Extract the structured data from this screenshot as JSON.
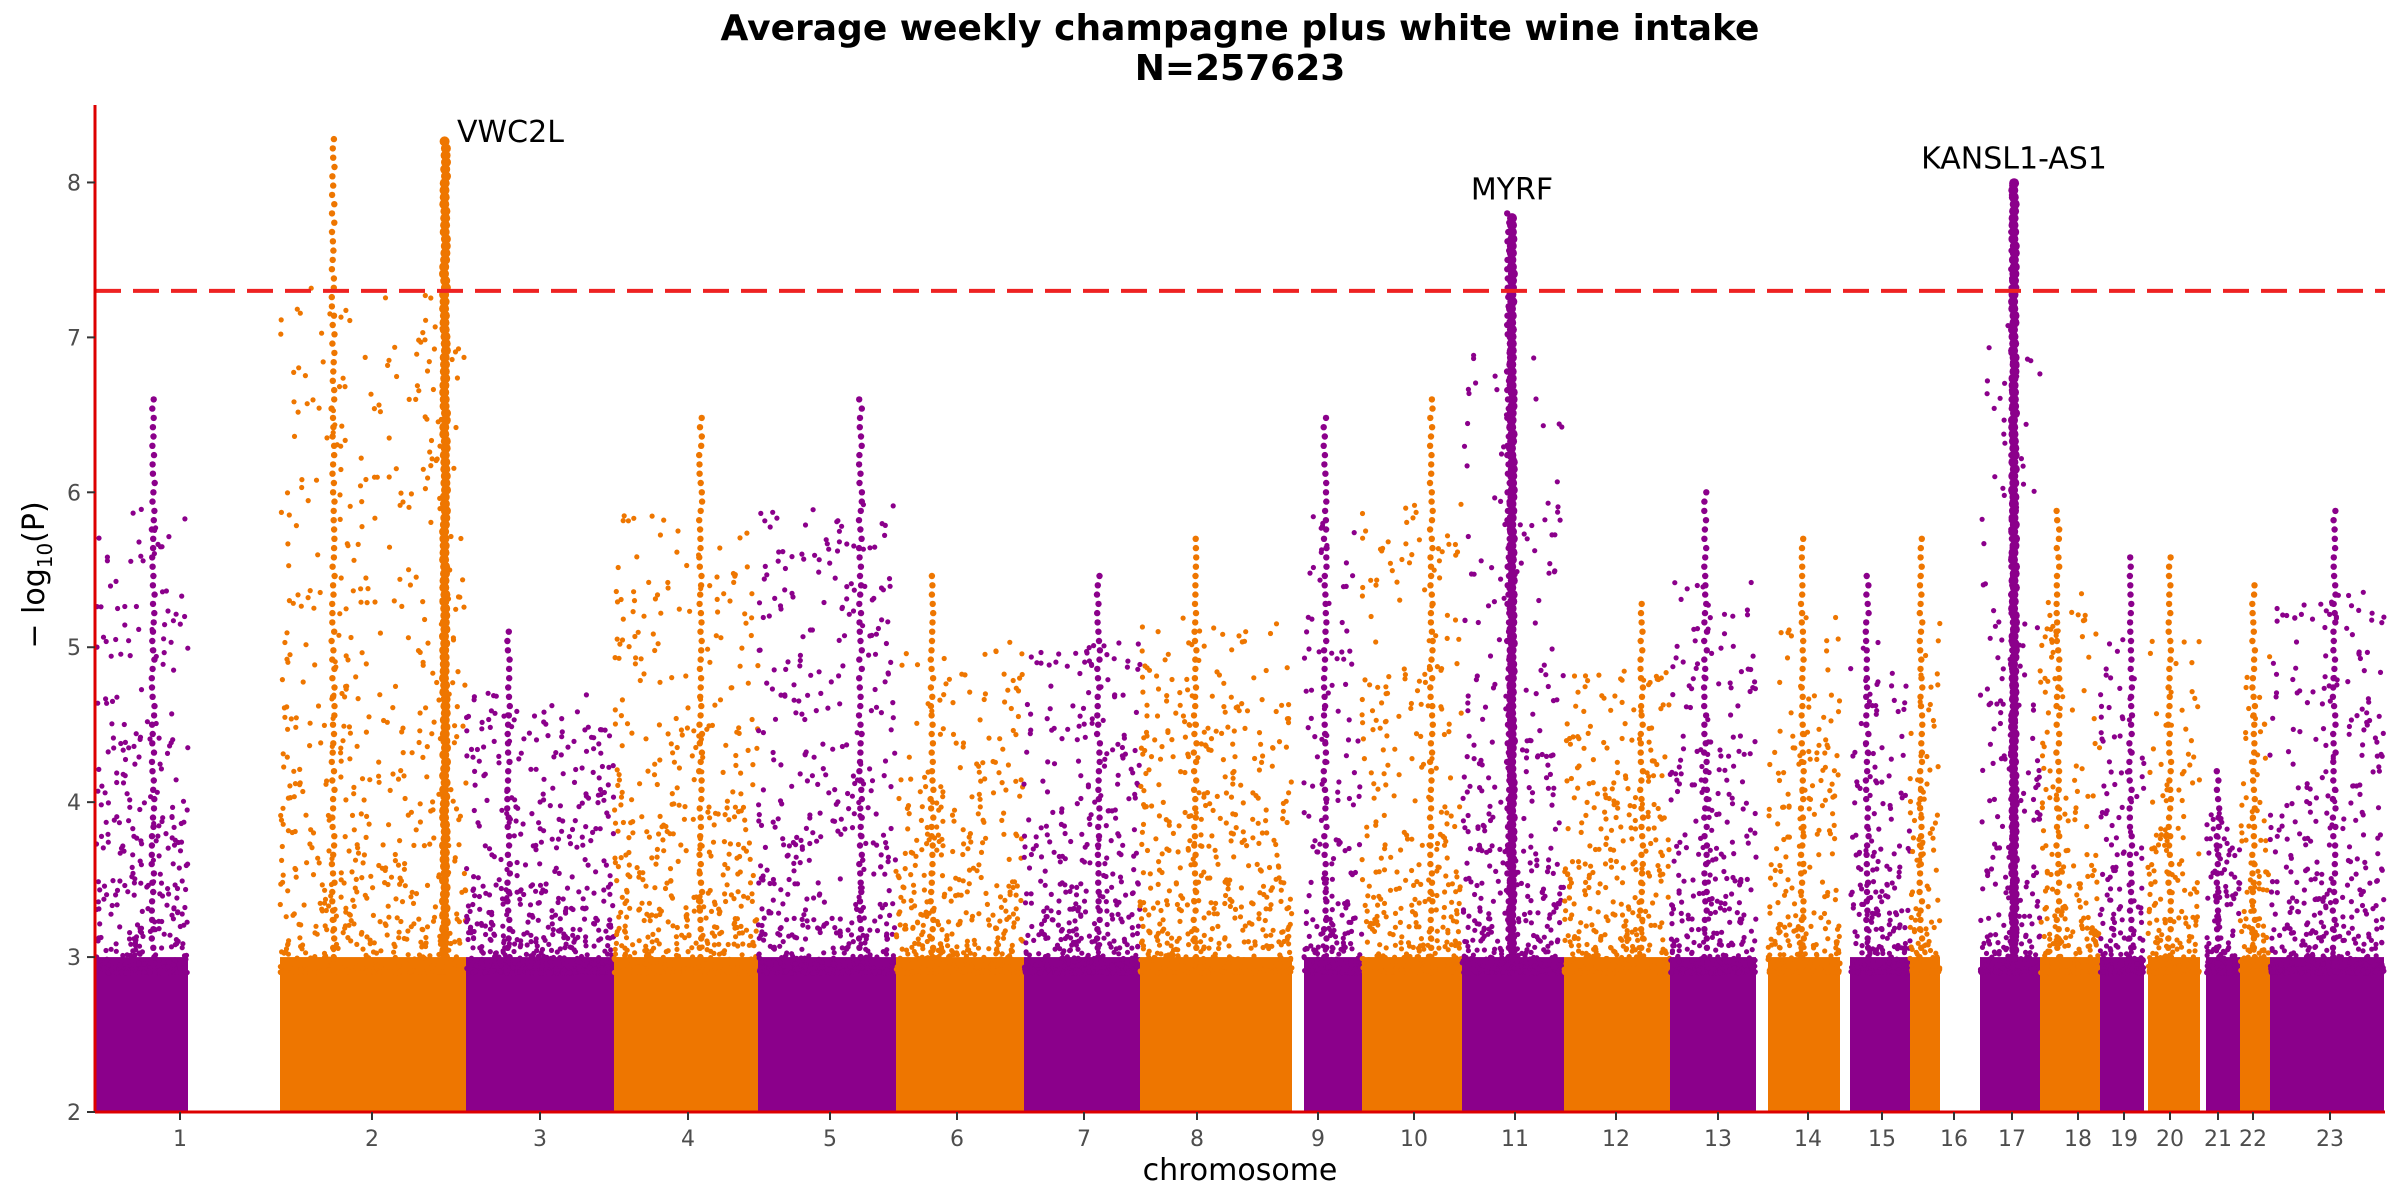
{
  "chart_data": {
    "type": "scatter",
    "subtype": "manhattan",
    "title": "Average weekly champagne plus white wine intake",
    "subtitle": "N=257623",
    "xlabel": "chromosome",
    "ylabel_prefix": "− log",
    "ylabel_sub": "10",
    "ylabel_suffix": "(P)",
    "ylim": [
      2,
      8.5
    ],
    "y_ticks": [
      "2",
      "3",
      "4",
      "5",
      "6",
      "7",
      "8"
    ],
    "significance_threshold": 7.3,
    "threshold_color": "#ee2222",
    "axis_color": "#dd0000",
    "colors": {
      "odd": "#8b008b",
      "even": "#ee7600"
    },
    "chromosomes": [
      {
        "label": "1",
        "color": "odd",
        "max": 6.6
      },
      {
        "label": "2",
        "color": "even",
        "max": 8.3
      },
      {
        "label": "3",
        "color": "odd",
        "max": 5.1
      },
      {
        "label": "4",
        "color": "even",
        "max": 6.5
      },
      {
        "label": "5",
        "color": "odd",
        "max": 6.6
      },
      {
        "label": "6",
        "color": "even",
        "max": 5.5
      },
      {
        "label": "7",
        "color": "odd",
        "max": 5.5
      },
      {
        "label": "8",
        "color": "even",
        "max": 5.7
      },
      {
        "label": "9",
        "color": "odd",
        "max": 6.5
      },
      {
        "label": "10",
        "color": "even",
        "max": 6.6
      },
      {
        "label": "11",
        "color": "odd",
        "max": 7.8
      },
      {
        "label": "12",
        "color": "even",
        "max": 5.3
      },
      {
        "label": "13",
        "color": "odd",
        "max": 6.0
      },
      {
        "label": "14",
        "color": "even",
        "max": 5.7
      },
      {
        "label": "15",
        "color": "odd",
        "max": 5.5
      },
      {
        "label": "16",
        "color": "even",
        "max": 5.7
      },
      {
        "label": "17",
        "color": "odd",
        "max": 8.0
      },
      {
        "label": "18",
        "color": "even",
        "max": 5.9
      },
      {
        "label": "19",
        "color": "odd",
        "max": 5.6
      },
      {
        "label": "20",
        "color": "even",
        "max": 5.6
      },
      {
        "label": "21",
        "color": "odd",
        "max": 4.2
      },
      {
        "label": "22",
        "color": "even",
        "max": 5.4
      },
      {
        "label": "23",
        "color": "odd",
        "max": 5.9
      }
    ],
    "annotations": [
      {
        "chromosome": "2",
        "label": "VWC2L",
        "peak": 8.3
      },
      {
        "chromosome": "11",
        "label": "MYRF",
        "peak": 7.8
      },
      {
        "chromosome": "17",
        "label": "KANSL1-AS1",
        "peak": 8.0
      }
    ]
  }
}
